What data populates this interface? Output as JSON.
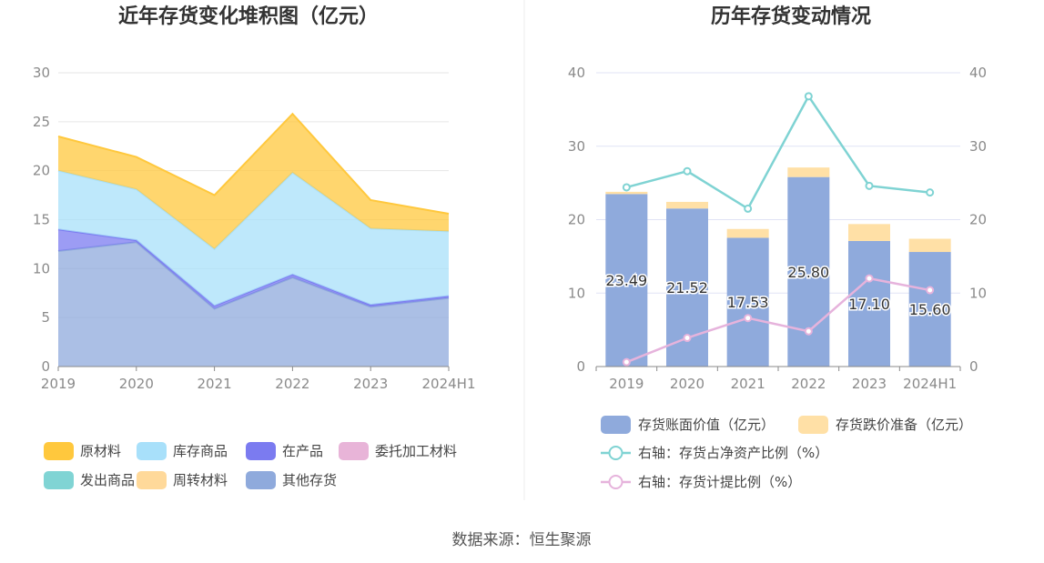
{
  "source": "数据来源：恒生聚源",
  "chart_data": [
    {
      "type": "area",
      "stacked": true,
      "title": "近年存货变化堆积图（亿元）",
      "categories": [
        "2019",
        "2020",
        "2021",
        "2022",
        "2023",
        "2024H1"
      ],
      "ylim": [
        0,
        30
      ],
      "yticks": [
        "0",
        "5",
        "10",
        "15",
        "20",
        "25",
        "30"
      ],
      "series": [
        {
          "name": "其他存货",
          "color": "#8faadc",
          "values": [
            11.8,
            12.7,
            5.9,
            9.1,
            6.1,
            7.0
          ]
        },
        {
          "name": "在产品",
          "color": "#7b7bf0",
          "values": [
            2.2,
            0.2,
            0.3,
            0.3,
            0.2,
            0.2
          ]
        },
        {
          "name": "委托加工材料",
          "color": "#e8b4d8",
          "values": [
            0,
            0,
            0,
            0,
            0,
            0
          ]
        },
        {
          "name": "发出商品",
          "color": "#80d4d4",
          "values": [
            0,
            0,
            0,
            0,
            0,
            0
          ]
        },
        {
          "name": "库存商品",
          "color": "#a8e0fa",
          "values": [
            6.0,
            5.2,
            5.8,
            10.4,
            7.8,
            6.6
          ]
        },
        {
          "name": "周转材料",
          "color": "#ffd99a",
          "values": [
            0,
            0,
            0,
            0,
            0,
            0
          ]
        },
        {
          "name": "原材料",
          "color": "#ffc83d",
          "values": [
            3.5,
            3.3,
            5.5,
            6.0,
            2.9,
            1.8
          ]
        }
      ],
      "legend": [
        {
          "name": "原材料",
          "color": "#ffc83d"
        },
        {
          "name": "库存商品",
          "color": "#a8e0fa"
        },
        {
          "name": "在产品",
          "color": "#7b7bf0"
        },
        {
          "name": "委托加工材料",
          "color": "#e8b4d8"
        },
        {
          "name": "发出商品",
          "color": "#80d4d4"
        },
        {
          "name": "周转材料",
          "color": "#ffd99a"
        },
        {
          "name": "其他存货",
          "color": "#8faadc"
        }
      ]
    },
    {
      "type": "bar+line",
      "title": "历年存货变动情况",
      "categories": [
        "2019",
        "2020",
        "2021",
        "2022",
        "2023",
        "2024H1"
      ],
      "ylim_left": [
        0,
        40
      ],
      "ylim_right": [
        0,
        40
      ],
      "yticks": [
        "0",
        "10",
        "20",
        "30",
        "40"
      ],
      "bars": [
        {
          "name": "存货账面价值（亿元）",
          "color": "#8faadc",
          "values": [
            23.49,
            21.52,
            17.53,
            25.8,
            17.1,
            15.6
          ]
        },
        {
          "name": "存货跌价准备（亿元）",
          "color": "#ffe0a6",
          "values": [
            0.3,
            0.9,
            1.2,
            1.3,
            2.3,
            1.8
          ]
        }
      ],
      "bar_labels": [
        "23.49",
        "21.52",
        "17.53",
        "25.80",
        "17.10",
        "15.60"
      ],
      "lines": [
        {
          "name": "右轴：存货占净资产比例（%）",
          "color": "#7fd3d3",
          "values": [
            24.4,
            26.6,
            21.5,
            36.8,
            24.6,
            23.7
          ]
        },
        {
          "name": "右轴：存货计提比例（%）",
          "color": "#e6b3dc",
          "values": [
            0.6,
            3.9,
            6.6,
            4.8,
            12.0,
            10.4
          ]
        }
      ]
    }
  ]
}
